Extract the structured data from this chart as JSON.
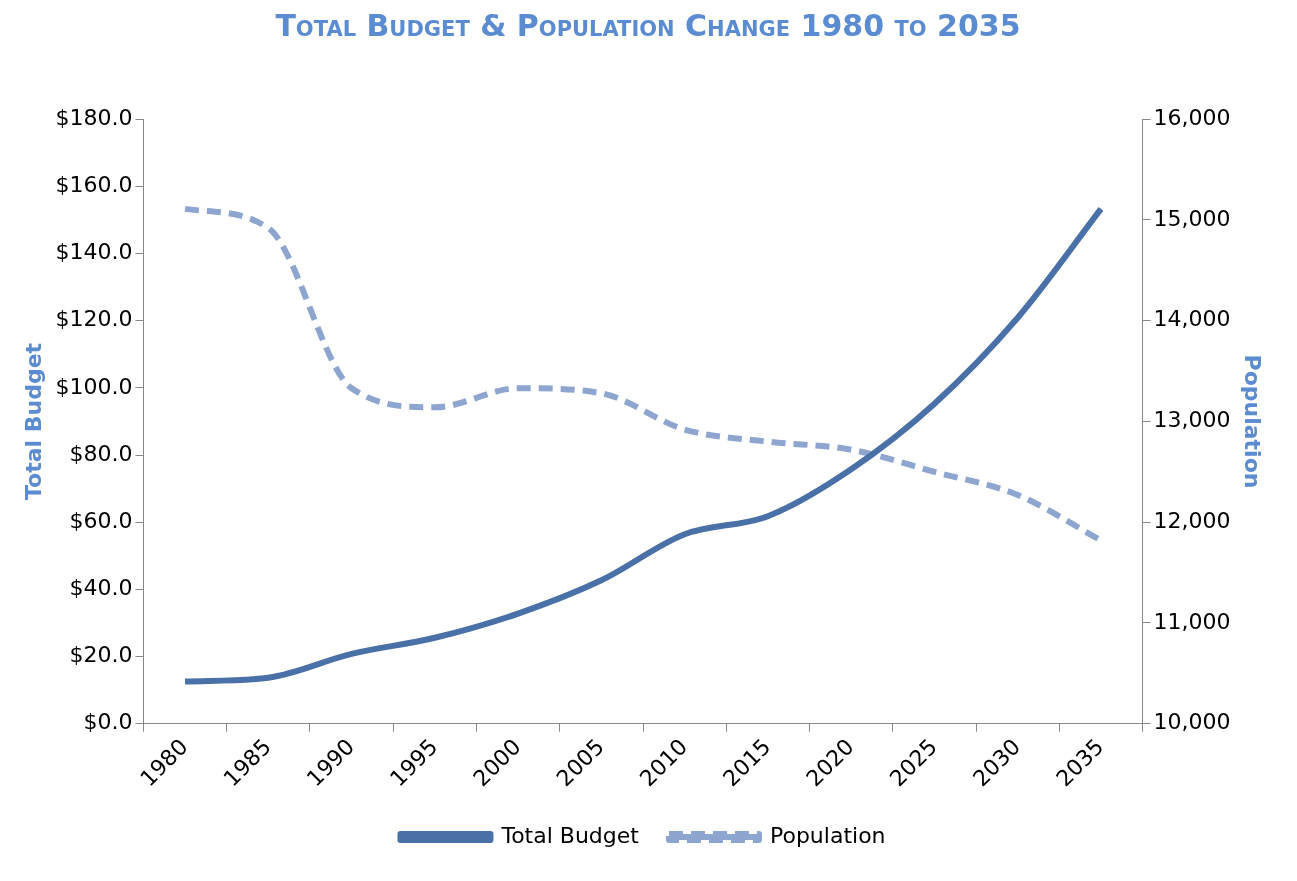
{
  "chart_data": {
    "type": "line",
    "title": "Total Budget & Population Change 1980 to 2035",
    "ylabel": "Total Budget",
    "y2label": "Population",
    "categories": [
      "1980",
      "1985",
      "1990",
      "1995",
      "2000",
      "2005",
      "2010",
      "2015",
      "2020",
      "2025",
      "2030",
      "2035"
    ],
    "series": [
      {
        "name": "Total Budget",
        "color": "#4a70a8",
        "line_style": "solid",
        "values": [
          12.6,
          13.7,
          20.8,
          25.6,
          32.8,
          42.7,
          56.4,
          61.8,
          75.8,
          95.3,
          120.9,
          153.3
        ]
      },
      {
        "name": "Population",
        "color": "#8ea6cf",
        "line_style": "dashed",
        "axis": "y2",
        "values": [
          15110,
          14920,
          13330,
          13140,
          13330,
          13280,
          12920,
          12800,
          12720,
          12500,
          12270,
          11820
        ]
      }
    ],
    "ylim": [
      0,
      180
    ],
    "yticks": [
      {
        "value": 0,
        "label": "$0.0"
      },
      {
        "value": 20,
        "label": "$20.0"
      },
      {
        "value": 40,
        "label": "$40.0"
      },
      {
        "value": 60,
        "label": "$60.0"
      },
      {
        "value": 80,
        "label": "$80.0"
      },
      {
        "value": 100,
        "label": "$100.0"
      },
      {
        "value": 120,
        "label": "$120.0"
      },
      {
        "value": 140,
        "label": "$140.0"
      },
      {
        "value": 160,
        "label": "$160.0"
      },
      {
        "value": 180,
        "label": "$180.0"
      }
    ],
    "y2lim": [
      10000,
      16000
    ],
    "y2ticks": [
      {
        "value": 10000,
        "label": "10,000"
      },
      {
        "value": 11000,
        "label": "11,000"
      },
      {
        "value": 12000,
        "label": "12,000"
      },
      {
        "value": 13000,
        "label": "13,000"
      },
      {
        "value": 14000,
        "label": "14,000"
      },
      {
        "value": 15000,
        "label": "15,000"
      },
      {
        "value": 16000,
        "label": "16,000"
      }
    ],
    "grid": false,
    "legend": "bottom",
    "marker": "none"
  }
}
